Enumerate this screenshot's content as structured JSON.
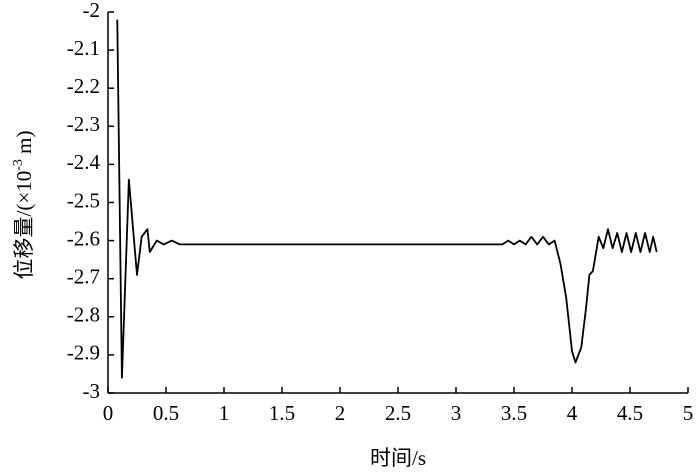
{
  "chart_data": {
    "type": "line",
    "xlabel": "时间/s",
    "ylabel": [
      "位移量/(×10",
      "-3",
      " m)"
    ],
    "xlim": [
      0,
      5
    ],
    "xticks": [
      0,
      0.5,
      1,
      1.5,
      2,
      2.5,
      3,
      3.5,
      4,
      4.5,
      5
    ],
    "ylim": [
      -3,
      -2
    ],
    "yticks": [
      -3,
      -2.9,
      -2.8,
      -2.7,
      -2.6,
      -2.5,
      -2.4,
      -2.3,
      -2.2,
      -2.1,
      -2
    ],
    "color": "#000000",
    "x": [
      0.08,
      0.12,
      0.18,
      0.25,
      0.29,
      0.34,
      0.36,
      0.42,
      0.48,
      0.55,
      0.62,
      0.7,
      3.4,
      3.45,
      3.5,
      3.55,
      3.6,
      3.65,
      3.7,
      3.75,
      3.8,
      3.85,
      3.9,
      3.95,
      4.0,
      4.03,
      4.08,
      4.12,
      4.15,
      4.18,
      4.23,
      4.27,
      4.31,
      4.35,
      4.39,
      4.43,
      4.47,
      4.51,
      4.55,
      4.59,
      4.63,
      4.67,
      4.7,
      4.73
    ],
    "values": [
      -2.02,
      -2.96,
      -2.44,
      -2.69,
      -2.59,
      -2.57,
      -2.63,
      -2.6,
      -2.61,
      -2.6,
      -2.61,
      -2.61,
      -2.61,
      -2.6,
      -2.61,
      -2.6,
      -2.61,
      -2.59,
      -2.61,
      -2.59,
      -2.61,
      -2.6,
      -2.66,
      -2.75,
      -2.89,
      -2.92,
      -2.88,
      -2.78,
      -2.69,
      -2.68,
      -2.59,
      -2.62,
      -2.57,
      -2.62,
      -2.58,
      -2.63,
      -2.58,
      -2.63,
      -2.58,
      -2.63,
      -2.58,
      -2.63,
      -2.59,
      -2.63
    ]
  }
}
